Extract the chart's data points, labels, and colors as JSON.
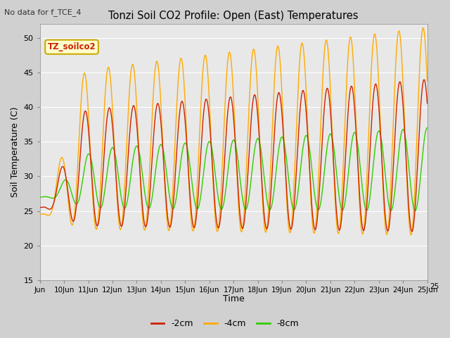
{
  "title": "Tonzi Soil CO2 Profile: Open (East) Temperatures",
  "top_left_text": "No data for f_TCE_4",
  "ylabel": "Soil Temperature (C)",
  "xlabel": "Time",
  "ylim": [
    15,
    52
  ],
  "yticks": [
    15,
    20,
    25,
    30,
    35,
    40,
    45,
    50
  ],
  "fig_bg_color": "#d0d0d0",
  "plot_bg_color": "#e8e8e8",
  "grid_color": "#ffffff",
  "line_colors": {
    "minus2cm": "#cc2200",
    "minus4cm": "#ffaa00",
    "minus8cm": "#33cc00"
  },
  "legend_label": "TZ_soilco2",
  "legend_bg": "#ffffcc",
  "legend_border": "#ccaa00",
  "series_labels": [
    "-2cm",
    "-4cm",
    "-8cm"
  ],
  "n_days": 16,
  "start_day": 9,
  "points_per_day": 96
}
